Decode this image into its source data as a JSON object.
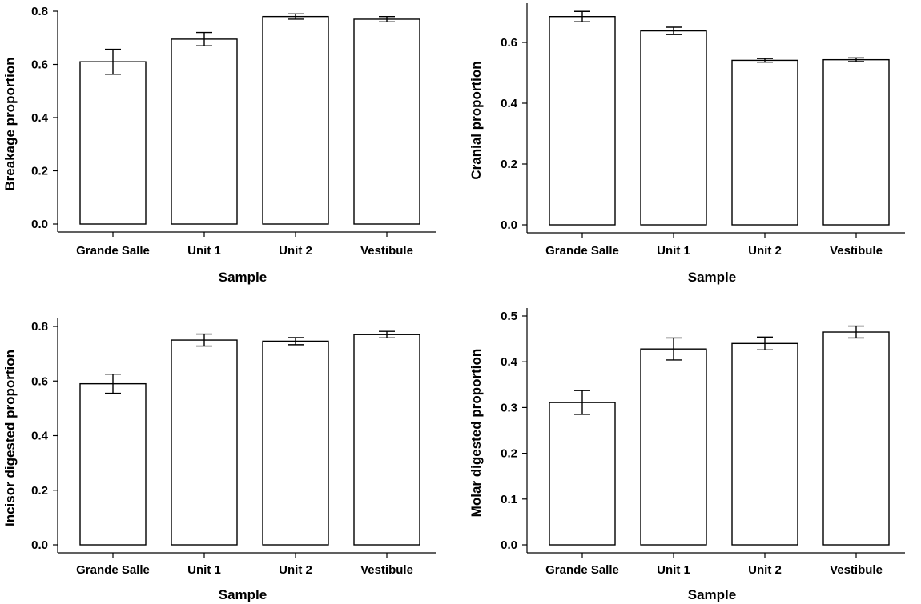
{
  "chart_data": [
    {
      "type": "bar",
      "title": "",
      "xlabel": "Sample",
      "ylabel": "Breakage proportion",
      "categories": [
        "Grande Salle",
        "Unit 1",
        "Unit 2",
        "Vestibule"
      ],
      "values": [
        0.61,
        0.695,
        0.78,
        0.77
      ],
      "errors": [
        0.047,
        0.025,
        0.01,
        0.01
      ],
      "ylim": [
        0,
        0.8
      ],
      "yticks": [
        "0.0",
        "0.2",
        "0.4",
        "0.6",
        "0.8"
      ],
      "ytick_values": [
        0,
        0.2,
        0.4,
        0.6,
        0.8
      ]
    },
    {
      "type": "bar",
      "title": "",
      "xlabel": "Sample",
      "ylabel": "Cranial proportion",
      "categories": [
        "Grande Salle",
        "Unit 1",
        "Unit 2",
        "Vestibule"
      ],
      "values": [
        0.685,
        0.638,
        0.541,
        0.543
      ],
      "errors": [
        0.017,
        0.012,
        0.006,
        0.006
      ],
      "ylim": [
        0,
        0.73
      ],
      "yticks": [
        "0.0",
        "0.2",
        "0.4",
        "0.6"
      ],
      "ytick_values": [
        0,
        0.2,
        0.4,
        0.6
      ]
    },
    {
      "type": "bar",
      "title": "",
      "xlabel": "Sample",
      "ylabel": "Incisor digested proportion",
      "categories": [
        "Grande Salle",
        "Unit 1",
        "Unit 2",
        "Vestibule"
      ],
      "values": [
        0.59,
        0.75,
        0.746,
        0.77
      ],
      "errors": [
        0.035,
        0.022,
        0.013,
        0.012
      ],
      "ylim": [
        0,
        0.8
      ],
      "yticks": [
        "0.0",
        "0.2",
        "0.4",
        "0.6",
        "0.8"
      ],
      "ytick_values": [
        0,
        0.2,
        0.4,
        0.6,
        0.8
      ]
    },
    {
      "type": "bar",
      "title": "",
      "xlabel": "Sample",
      "ylabel": "Molar digested proportion",
      "categories": [
        "Grande Salle",
        "Unit 1",
        "Unit 2",
        "Vestibule"
      ],
      "values": [
        0.311,
        0.428,
        0.44,
        0.465
      ],
      "errors": [
        0.026,
        0.024,
        0.014,
        0.013
      ],
      "ylim": [
        0,
        0.5
      ],
      "yticks": [
        "0.0",
        "0.1",
        "0.2",
        "0.3",
        "0.4",
        "0.5"
      ],
      "ytick_values": [
        0,
        0.1,
        0.2,
        0.3,
        0.4,
        0.5
      ]
    }
  ]
}
